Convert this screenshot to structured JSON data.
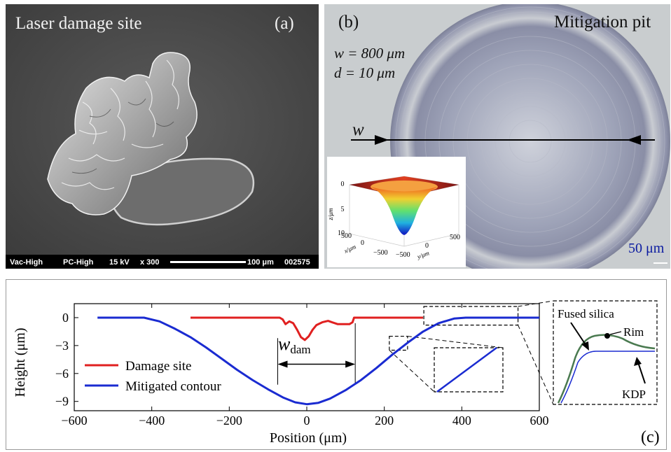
{
  "panel_a": {
    "label": "(a)",
    "title": "Laser damage site",
    "sem_bar": {
      "vacuum": "Vac-High",
      "mode": "PC-High",
      "voltage": "15 kV",
      "magnification": "x 300",
      "scale": "100 μm",
      "image_no": "002575"
    }
  },
  "panel_b": {
    "label": "(b)",
    "title": "Mitigation pit",
    "w_line": "w = 800 μm",
    "w_symbol": "w",
    "d_line": "d = 10 μm",
    "arrow_symbol": "w",
    "scale_bar": "50 μm",
    "inset": {
      "z_axis_label": "z/μm",
      "x_axis_label": "x/μm",
      "y_axis_label": "y/μm",
      "z_ticks": [
        "0",
        "5",
        "10"
      ],
      "x_ticks": [
        "500",
        "0",
        "−500"
      ],
      "y_ticks": [
        "−500",
        "0",
        "500"
      ]
    }
  },
  "panel_c": {
    "label": "(c)",
    "w_dam_symbol": "w",
    "w_dam_sub": "dam",
    "inset_labels": {
      "fused_silica": "Fused silica",
      "rim": "Rim",
      "kdp": "KDP"
    }
  },
  "colors": {
    "damage": "#e02020",
    "mitigated": "#1a2bd1",
    "fused_silica": "#4a7a50",
    "kdp": "#1a2bd1"
  },
  "chart_data": {
    "type": "line",
    "xlabel": "Position (μm)",
    "ylabel": "Height (μm)",
    "xlim": [
      -600,
      600
    ],
    "ylim": [
      -10,
      1.5
    ],
    "x_ticks": [
      -600,
      -400,
      -200,
      0,
      200,
      400,
      600
    ],
    "y_ticks": [
      0,
      -3,
      -6,
      -9
    ],
    "legend_position": "lower-left",
    "series": [
      {
        "name": "Damage site",
        "color": "#e02020",
        "points": [
          [
            -300,
            0
          ],
          [
            -70,
            0
          ],
          [
            -62,
            -0.2
          ],
          [
            -55,
            -0.7
          ],
          [
            -45,
            -0.4
          ],
          [
            -35,
            -0.6
          ],
          [
            -25,
            -1.3
          ],
          [
            -15,
            -2.1
          ],
          [
            -5,
            -2.4
          ],
          [
            5,
            -2.0
          ],
          [
            15,
            -1.3
          ],
          [
            25,
            -0.8
          ],
          [
            40,
            -0.5
          ],
          [
            55,
            -0.35
          ],
          [
            65,
            -0.5
          ],
          [
            80,
            -0.7
          ],
          [
            110,
            -0.7
          ],
          [
            118,
            -0.5
          ],
          [
            122,
            0
          ],
          [
            300,
            0
          ]
        ]
      },
      {
        "name": "Mitigated contour",
        "color": "#1a2bd1",
        "points": [
          [
            -540,
            0
          ],
          [
            -420,
            0
          ],
          [
            -380,
            -0.4
          ],
          [
            -340,
            -1.2
          ],
          [
            -300,
            -2.1
          ],
          [
            -260,
            -3.2
          ],
          [
            -220,
            -4.4
          ],
          [
            -180,
            -5.6
          ],
          [
            -140,
            -6.7
          ],
          [
            -100,
            -7.7
          ],
          [
            -60,
            -8.6
          ],
          [
            -30,
            -9.1
          ],
          [
            0,
            -9.3
          ],
          [
            30,
            -9.15
          ],
          [
            60,
            -8.7
          ],
          [
            100,
            -7.8
          ],
          [
            140,
            -6.7
          ],
          [
            180,
            -5.4
          ],
          [
            220,
            -4.0
          ],
          [
            260,
            -2.7
          ],
          [
            300,
            -1.5
          ],
          [
            340,
            -0.6
          ],
          [
            380,
            -0.1
          ],
          [
            410,
            0
          ],
          [
            600,
            0
          ]
        ]
      }
    ],
    "annotations": [
      {
        "type": "dimension",
        "label": "w_dam",
        "x_from": -75,
        "x_to": 125,
        "y": -5.0
      },
      {
        "type": "zoom-box",
        "x_range": [
          213,
          260
        ],
        "y_range": [
          -3.5,
          -2
        ]
      },
      {
        "type": "zoom-box",
        "x_range": [
          302,
          545
        ],
        "y_range": [
          -0.8,
          1.2
        ]
      }
    ]
  }
}
